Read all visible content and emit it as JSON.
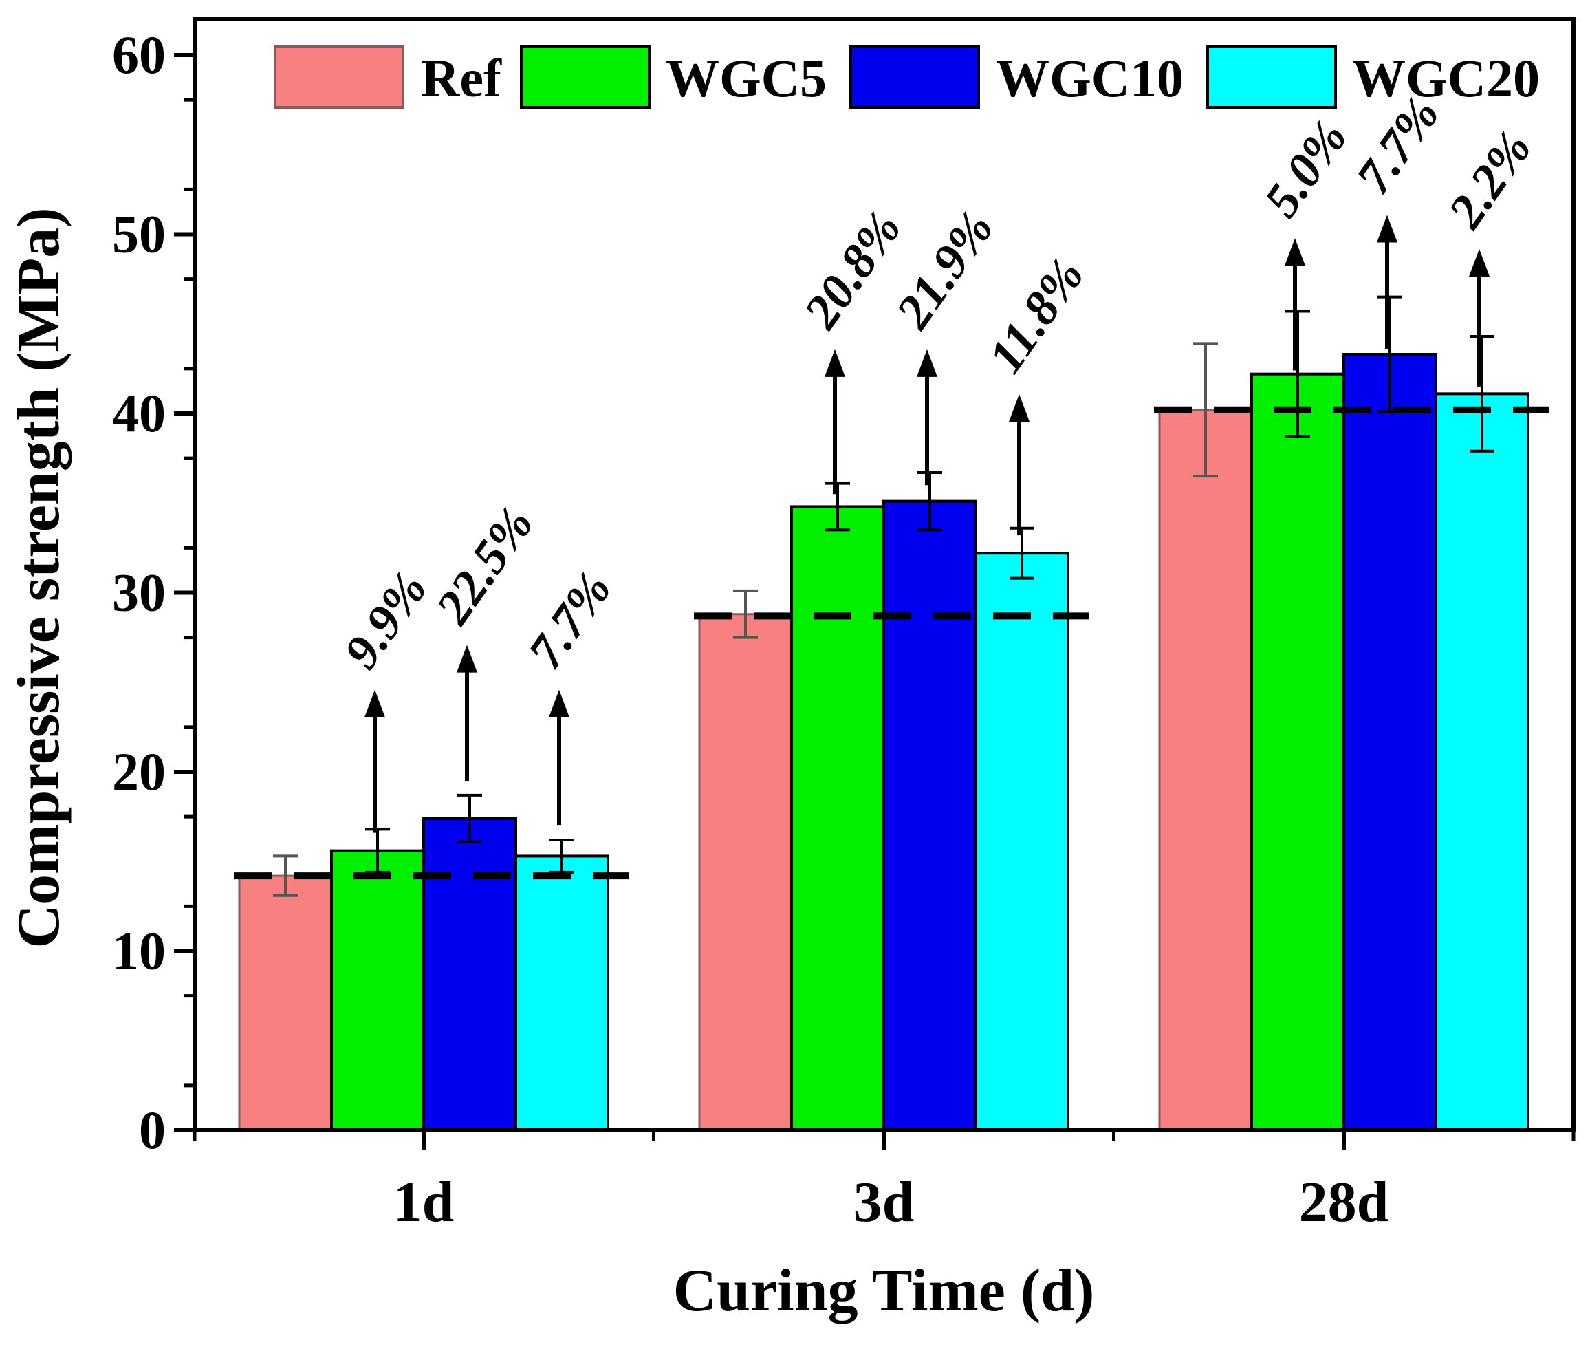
{
  "chart_data": {
    "type": "bar",
    "title": "",
    "xlabel": "Curing Time (d)",
    "ylabel": "Compressive strength (MPa)",
    "categories": [
      "1d",
      "3d",
      "28d"
    ],
    "ylim": [
      0,
      60
    ],
    "yticks": [
      0,
      10,
      20,
      30,
      40,
      50,
      60
    ],
    "grid": false,
    "legend_position": "top",
    "series": [
      {
        "name": "Ref",
        "color": "#F88080",
        "values": [
          14.2,
          28.8,
          40.2
        ],
        "errors": [
          1.1,
          1.3,
          3.7
        ]
      },
      {
        "name": "WGC5",
        "color": "#00F000",
        "values": [
          15.6,
          34.8,
          42.2
        ],
        "errors": [
          1.2,
          1.3,
          3.5
        ]
      },
      {
        "name": "WGC10",
        "color": "#0000F0",
        "values": [
          17.4,
          35.1,
          43.3
        ],
        "errors": [
          1.3,
          1.6,
          3.2
        ]
      },
      {
        "name": "WGC20",
        "color": "#00FFFF",
        "values": [
          15.3,
          32.2,
          41.1
        ],
        "errors": [
          0.9,
          1.4,
          3.2
        ]
      }
    ],
    "reference_lines": [
      14.2,
      28.7,
      40.2
    ],
    "annotations": [
      {
        "category": "1d",
        "series": "WGC5",
        "label": "9.9%",
        "arrow_from": 16.6,
        "arrow_to": 24.5
      },
      {
        "category": "1d",
        "series": "WGC10",
        "label": "22.5%",
        "arrow_from": 19.5,
        "arrow_to": 27.0
      },
      {
        "category": "1d",
        "series": "WGC20",
        "label": "7.7%",
        "arrow_from": 17.0,
        "arrow_to": 24.5
      },
      {
        "category": "3d",
        "series": "WGC5",
        "label": "20.8%",
        "arrow_from": 35.5,
        "arrow_to": 43.5
      },
      {
        "category": "3d",
        "series": "WGC10",
        "label": "21.9%",
        "arrow_from": 36.0,
        "arrow_to": 43.5
      },
      {
        "category": "3d",
        "series": "WGC20",
        "label": "11.8%",
        "arrow_from": 33.2,
        "arrow_to": 41.0
      },
      {
        "category": "28d",
        "series": "WGC5",
        "label": "5.0%",
        "arrow_from": 42.4,
        "arrow_to": 49.7
      },
      {
        "category": "28d",
        "series": "WGC10",
        "label": "7.7%",
        "arrow_from": 43.6,
        "arrow_to": 51.0
      },
      {
        "category": "28d",
        "series": "WGC20",
        "label": "2.2%",
        "arrow_from": 41.5,
        "arrow_to": 49.1
      }
    ]
  }
}
